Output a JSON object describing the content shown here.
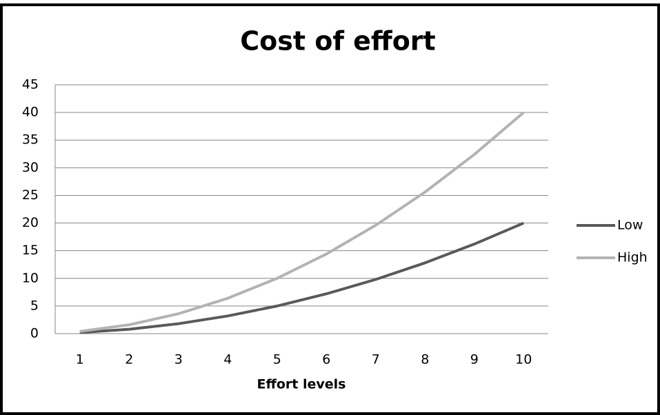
{
  "chart_data": {
    "type": "line",
    "title": "Cost of effort",
    "x_label": "Effort levels",
    "categories": [
      1,
      2,
      3,
      4,
      5,
      6,
      7,
      8,
      9,
      10
    ],
    "series": [
      {
        "name": "Low",
        "color": "#595959",
        "values": [
          0.2,
          0.8,
          1.8,
          3.2,
          5,
          7.2,
          9.8,
          12.8,
          16.2,
          20
        ]
      },
      {
        "name": "High",
        "color": "#b3b3b3",
        "values": [
          0.4,
          1.6,
          3.6,
          6.4,
          10,
          14.4,
          19.6,
          25.6,
          32.4,
          40
        ]
      }
    ],
    "ylim": [
      0,
      45
    ],
    "yticks": [
      0,
      5,
      10,
      15,
      20,
      25,
      30,
      35,
      40,
      45
    ],
    "grid": true,
    "legend": "right"
  }
}
